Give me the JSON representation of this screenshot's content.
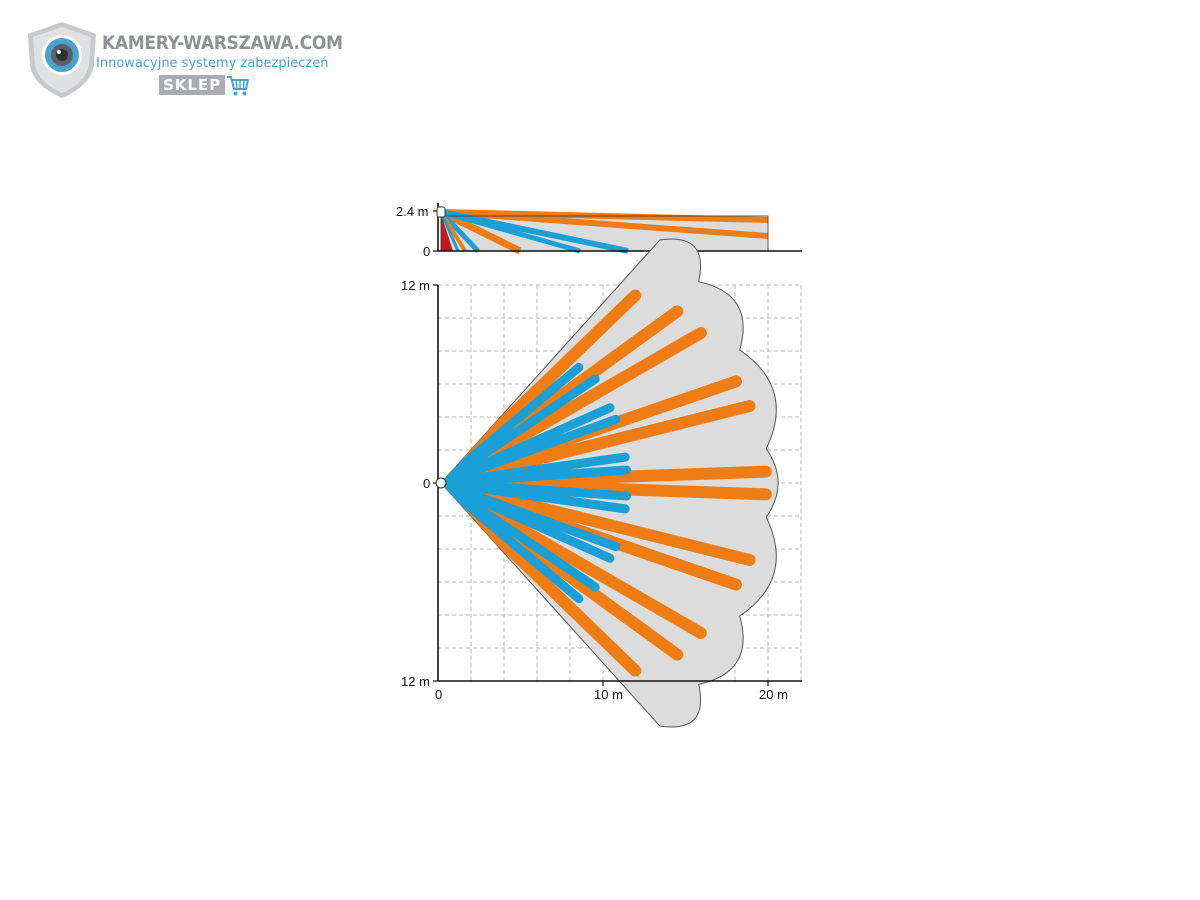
{
  "logo": {
    "brand_name": "KAMERY-WARSZAWA.COM",
    "tagline": "Innowacyjne systemy zabezpieczeń",
    "shop_badge": "SKLEP",
    "icons": [
      "camera-shield-icon",
      "shopping-cart-icon"
    ],
    "colors": {
      "brand_gray": "#8f9398",
      "brand_blue": "#4aa3cf"
    }
  },
  "side_view": {
    "height_label": "2.4 m",
    "zero_label": "0",
    "height_m": 2.4,
    "max_range_m": 20
  },
  "top_view": {
    "y_top_label": "12 m",
    "y_mid_label": "0",
    "y_bottom_label": "12 m",
    "x_labels": [
      "0",
      "10 m",
      "20 m"
    ],
    "x_range_m": [
      0,
      22
    ],
    "y_range_m": [
      -12,
      12
    ],
    "grid": "dashed, 2 m spacing"
  },
  "colors": {
    "long_range_zone": "#f07d14",
    "short_range_zone": "#1aa0d6",
    "near_zone": "#c41a1a",
    "coverage_area": "#dcdcdc"
  }
}
